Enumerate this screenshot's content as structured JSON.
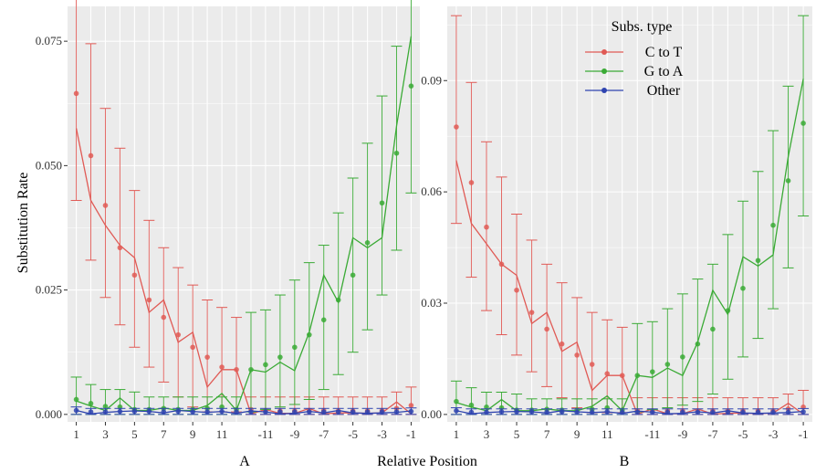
{
  "colors": {
    "C to T": "#e05a55",
    "G to A": "#3aaa35",
    "Other": "#2f44b0",
    "panel_bg": "#ebebeb",
    "grid": "#ffffff"
  },
  "labels": {
    "ylabel": "Substitution Rate",
    "xlabel": "Relative Position",
    "panel_a": "A",
    "panel_b": "B"
  },
  "legend": {
    "title": "Subs. type",
    "entries": [
      "C to T",
      "G to A",
      "Other"
    ]
  },
  "chart_data": [
    {
      "panel": "A",
      "type": "line",
      "ylabel": "Substitution Rate",
      "xlabel": "Relative Position",
      "ylim": [
        -0.0015,
        0.082
      ],
      "yticks": [
        0.0,
        0.025,
        0.05,
        0.075
      ],
      "ytick_labels": [
        "0.000",
        "0.025",
        "0.050",
        "0.075"
      ],
      "x_tick_labels": [
        "1",
        "3",
        "5",
        "7",
        "9",
        "11",
        "-11",
        "-9",
        "-7",
        "-5",
        "-3",
        "-1"
      ],
      "x_positions": [
        "1",
        "2",
        "3",
        "4",
        "5",
        "6",
        "7",
        "8",
        "9",
        "10",
        "11",
        "12",
        "-12",
        "-11",
        "-10",
        "-9",
        "-8",
        "-7",
        "-6",
        "-5",
        "-4",
        "-3",
        "-2",
        "-1"
      ],
      "series": [
        {
          "name": "C to T",
          "line": [
            0.0575,
            0.043,
            0.038,
            0.034,
            0.0315,
            0.0205,
            0.023,
            0.0145,
            0.0165,
            0.0055,
            0.009,
            0.009,
            0.0001,
            0.001,
            0.0002,
            0.0002,
            0.0012,
            0.0001,
            0.0003,
            0.0003,
            0.0002,
            0.0003,
            0.0025,
            0.0001
          ],
          "points": [
            0.0645,
            0.052,
            0.042,
            0.0335,
            0.028,
            0.023,
            0.0195,
            0.016,
            0.0135,
            0.0115,
            0.0095,
            0.009,
            0.001,
            0.0008,
            0.0007,
            0.0007,
            0.0008,
            0.0008,
            0.0007,
            0.0007,
            0.0007,
            0.0008,
            0.0012,
            0.0018
          ],
          "err_low": [
            0.043,
            0.031,
            0.0235,
            0.018,
            0.0135,
            0.0095,
            0.0065,
            0.0035,
            0.0015,
            0.0005,
            0.0005,
            0.0005,
            0.0,
            0.0,
            0.0,
            0.0,
            0.0,
            0.0,
            0.0,
            0.0,
            0.0,
            0.0,
            0.0,
            0.0
          ],
          "err_high": [
            0.0895,
            0.0745,
            0.0615,
            0.0535,
            0.045,
            0.039,
            0.0335,
            0.0295,
            0.026,
            0.023,
            0.0215,
            0.0195,
            0.0035,
            0.0035,
            0.0035,
            0.0035,
            0.0035,
            0.0035,
            0.0035,
            0.0035,
            0.0035,
            0.0035,
            0.0045,
            0.0055
          ]
        },
        {
          "name": "G to A",
          "line": [
            0.0027,
            0.0017,
            0.0008,
            0.0033,
            0.0008,
            0.0008,
            0.0013,
            0.0008,
            0.0008,
            0.0018,
            0.0042,
            0.0008,
            0.009,
            0.0085,
            0.0105,
            0.0088,
            0.0165,
            0.028,
            0.0225,
            0.0355,
            0.0335,
            0.0355,
            0.058,
            0.076
          ],
          "points": [
            0.003,
            0.0022,
            0.0016,
            0.0015,
            0.001,
            0.001,
            0.0012,
            0.001,
            0.001,
            0.0012,
            0.0015,
            0.001,
            0.009,
            0.01,
            0.0115,
            0.0135,
            0.016,
            0.019,
            0.023,
            0.028,
            0.0345,
            0.0425,
            0.0525,
            0.066
          ],
          "err_low": [
            0.0,
            0.0,
            0.0,
            0.0,
            0.0,
            0.0,
            0.0,
            0.0,
            0.0,
            0.0,
            0.0,
            0.0,
            0.0005,
            0.001,
            0.0015,
            0.002,
            0.003,
            0.005,
            0.008,
            0.0125,
            0.017,
            0.024,
            0.033,
            0.0445
          ],
          "err_high": [
            0.0075,
            0.006,
            0.005,
            0.005,
            0.0045,
            0.0035,
            0.0035,
            0.0035,
            0.0035,
            0.0035,
            0.0035,
            0.0035,
            0.0205,
            0.021,
            0.024,
            0.027,
            0.0305,
            0.034,
            0.0405,
            0.0475,
            0.0545,
            0.064,
            0.074,
            0.0895
          ]
        },
        {
          "name": "Other",
          "line": [
            0.0008,
            0.0001,
            0.0004,
            0.0006,
            0.0007,
            0.0006,
            0.0003,
            0.0008,
            0.0006,
            0.0004,
            0.0006,
            0.0002,
            0.0007,
            0.0005,
            0.0001,
            0.0002,
            0.0006,
            0.0003,
            0.0008,
            0.0003,
            0.0002,
            0.0003,
            0.0004,
            0.0007
          ],
          "points": [
            0.0008,
            0.0005,
            0.0005,
            0.0006,
            0.0006,
            0.0006,
            0.0005,
            0.0006,
            0.0005,
            0.0005,
            0.0006,
            0.0005,
            0.0005,
            0.0005,
            0.0005,
            0.0005,
            0.0005,
            0.0005,
            0.0005,
            0.0005,
            0.0005,
            0.0005,
            0.0005,
            0.0006
          ],
          "err_low": [
            0.0,
            0.0,
            0.0,
            0.0,
            0.0,
            0.0,
            0.0,
            0.0,
            0.0,
            0.0,
            0.0,
            0.0,
            0.0,
            0.0,
            0.0,
            0.0,
            0.0,
            0.0,
            0.0,
            0.0,
            0.0,
            0.0,
            0.0,
            0.0
          ],
          "err_high": [
            0.0015,
            0.0012,
            0.0012,
            0.0012,
            0.0012,
            0.0012,
            0.0012,
            0.0012,
            0.0012,
            0.0012,
            0.0012,
            0.0012,
            0.0012,
            0.0012,
            0.0012,
            0.0012,
            0.0012,
            0.0012,
            0.0012,
            0.0012,
            0.0012,
            0.0012,
            0.0012,
            0.0013
          ]
        }
      ]
    },
    {
      "panel": "B",
      "type": "line",
      "ylim": [
        -0.002,
        0.11
      ],
      "yticks": [
        0.0,
        0.03,
        0.06,
        0.09
      ],
      "ytick_labels": [
        "0.00",
        "0.03",
        "0.06",
        "0.09"
      ],
      "x_tick_labels": [
        "1",
        "3",
        "5",
        "7",
        "9",
        "11",
        "-11",
        "-9",
        "-7",
        "-5",
        "-3",
        "-1"
      ],
      "x_positions": [
        "1",
        "2",
        "3",
        "4",
        "5",
        "6",
        "7",
        "8",
        "9",
        "10",
        "11",
        "12",
        "-12",
        "-11",
        "-10",
        "-9",
        "-8",
        "-7",
        "-6",
        "-5",
        "-4",
        "-3",
        "-2",
        "-1"
      ],
      "series": [
        {
          "name": "C to T",
          "line": [
            0.0685,
            0.0515,
            0.046,
            0.0405,
            0.0375,
            0.0245,
            0.0275,
            0.017,
            0.0195,
            0.0065,
            0.0105,
            0.0105,
            0.0001,
            0.0015,
            0.0002,
            0.0002,
            0.0015,
            0.0001,
            0.0003,
            0.0004,
            0.0002,
            0.0004,
            0.003,
            0.0001
          ],
          "points": [
            0.0775,
            0.0625,
            0.0505,
            0.0405,
            0.0335,
            0.0275,
            0.023,
            0.019,
            0.016,
            0.0135,
            0.011,
            0.0105,
            0.001,
            0.001,
            0.001,
            0.001,
            0.001,
            0.001,
            0.001,
            0.001,
            0.001,
            0.001,
            0.0015,
            0.002
          ],
          "err_low": [
            0.0515,
            0.037,
            0.028,
            0.0215,
            0.016,
            0.0115,
            0.0075,
            0.0045,
            0.0018,
            0.0005,
            0.0005,
            0.0005,
            0.0,
            0.0,
            0.0,
            0.0,
            0.0,
            0.0,
            0.0,
            0.0,
            0.0,
            0.0,
            0.0,
            0.0
          ],
          "err_high": [
            0.1075,
            0.0895,
            0.0735,
            0.064,
            0.054,
            0.047,
            0.0405,
            0.0355,
            0.0315,
            0.0275,
            0.0255,
            0.0235,
            0.0045,
            0.0045,
            0.0045,
            0.0045,
            0.0045,
            0.0045,
            0.0045,
            0.0045,
            0.0045,
            0.0045,
            0.0055,
            0.0065
          ]
        },
        {
          "name": "G to A",
          "line": [
            0.0032,
            0.002,
            0.001,
            0.004,
            0.001,
            0.001,
            0.0015,
            0.001,
            0.001,
            0.0022,
            0.005,
            0.001,
            0.0105,
            0.01,
            0.0125,
            0.0105,
            0.0195,
            0.0335,
            0.027,
            0.0425,
            0.04,
            0.043,
            0.0695,
            0.0905
          ],
          "points": [
            0.0035,
            0.0025,
            0.002,
            0.0018,
            0.0012,
            0.0012,
            0.0014,
            0.0012,
            0.0012,
            0.0014,
            0.0018,
            0.0012,
            0.0105,
            0.0115,
            0.0135,
            0.0155,
            0.019,
            0.023,
            0.028,
            0.034,
            0.0415,
            0.051,
            0.063,
            0.0785
          ],
          "err_low": [
            0.0,
            0.0,
            0.0,
            0.0,
            0.0,
            0.0,
            0.0,
            0.0,
            0.0,
            0.0,
            0.0,
            0.0,
            0.0007,
            0.0013,
            0.0018,
            0.0025,
            0.0035,
            0.0055,
            0.0095,
            0.0155,
            0.0205,
            0.0285,
            0.0395,
            0.0535
          ],
          "err_high": [
            0.009,
            0.0072,
            0.006,
            0.006,
            0.0055,
            0.0042,
            0.0042,
            0.0042,
            0.0042,
            0.0042,
            0.0042,
            0.0042,
            0.0245,
            0.025,
            0.0285,
            0.0325,
            0.0365,
            0.0405,
            0.0485,
            0.0575,
            0.0655,
            0.0765,
            0.0885,
            0.1075
          ]
        },
        {
          "name": "Other",
          "line": [
            0.001,
            0.0002,
            0.0005,
            0.0007,
            0.0008,
            0.0007,
            0.0004,
            0.001,
            0.0007,
            0.0005,
            0.0007,
            0.0003,
            0.0009,
            0.0006,
            0.0002,
            0.0003,
            0.0007,
            0.0004,
            0.001,
            0.0004,
            0.0003,
            0.0004,
            0.0005,
            0.0008
          ],
          "points": [
            0.001,
            0.0006,
            0.0006,
            0.0007,
            0.0007,
            0.0007,
            0.0006,
            0.0007,
            0.0006,
            0.0006,
            0.0007,
            0.0006,
            0.0006,
            0.0006,
            0.0006,
            0.0006,
            0.0006,
            0.0006,
            0.0006,
            0.0006,
            0.0006,
            0.0006,
            0.0006,
            0.0007
          ],
          "err_low": [
            0.0,
            0.0,
            0.0,
            0.0,
            0.0,
            0.0,
            0.0,
            0.0,
            0.0,
            0.0,
            0.0,
            0.0,
            0.0,
            0.0,
            0.0,
            0.0,
            0.0,
            0.0,
            0.0,
            0.0,
            0.0,
            0.0,
            0.0,
            0.0
          ],
          "err_high": [
            0.0018,
            0.0015,
            0.0015,
            0.0015,
            0.0015,
            0.0015,
            0.0015,
            0.0015,
            0.0015,
            0.0015,
            0.0015,
            0.0015,
            0.0015,
            0.0015,
            0.0015,
            0.0015,
            0.0015,
            0.0015,
            0.0015,
            0.0015,
            0.0015,
            0.0015,
            0.0015,
            0.0016
          ]
        }
      ]
    }
  ]
}
